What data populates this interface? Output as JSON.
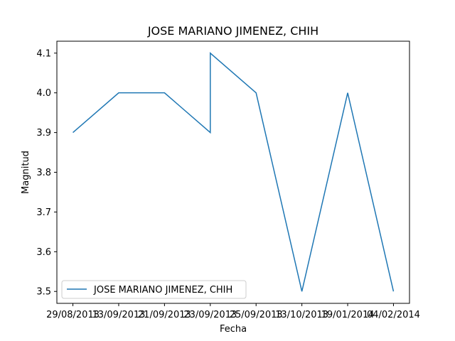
{
  "chart_data": {
    "type": "line",
    "title": "JOSE MARIANO JIMENEZ, CHIH",
    "xlabel": "Fecha",
    "ylabel": "Magnitud",
    "categories": [
      "29/08/2013",
      "13/09/2013",
      "21/09/2013",
      "23/09/2013",
      "25/09/2013",
      "13/10/2013",
      "19/01/2014",
      "04/02/2014"
    ],
    "x": [
      0,
      1,
      2,
      3,
      3,
      4,
      5,
      6,
      7
    ],
    "x_tick_positions": [
      0,
      1,
      2,
      3,
      4,
      5,
      6,
      7
    ],
    "series": [
      {
        "name": "JOSE MARIANO JIMENEZ, CHIH",
        "color": "#1f77b4",
        "values": [
          3.9,
          4.0,
          4.0,
          3.9,
          4.1,
          4.0,
          3.5,
          4.0,
          3.5
        ]
      }
    ],
    "yticks": [
      "3.5",
      "3.6",
      "3.7",
      "3.8",
      "3.9",
      "4.0",
      "4.1"
    ],
    "ylim": [
      3.47,
      4.13
    ],
    "xlim": [
      -0.35,
      7.35
    ],
    "grid": false,
    "legend_position": "lower-left"
  }
}
